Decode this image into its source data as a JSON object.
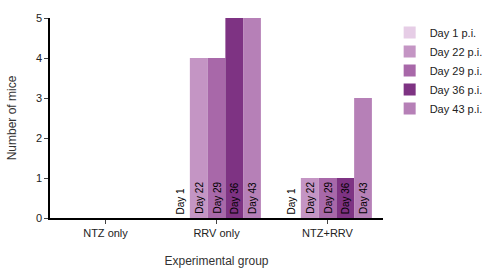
{
  "chart_data": {
    "type": "bar",
    "x_label": "Experimental group",
    "y_label": "Number of mice",
    "categories": [
      "NTZ only",
      "RRV only",
      "NTZ+RRV"
    ],
    "series": [
      {
        "name": "Day 1 p.i.",
        "color": "#e6cde6",
        "values": [
          0,
          0,
          0
        ]
      },
      {
        "name": "Day 22 p.i.",
        "color": "#c495c4",
        "values": [
          0,
          4,
          1
        ]
      },
      {
        "name": "Day 29 p.i.",
        "color": "#a868a9",
        "values": [
          0,
          4,
          1
        ]
      },
      {
        "name": "Day 36 p.i.",
        "color": "#7e3383",
        "values": [
          0,
          5,
          1
        ]
      },
      {
        "name": "Day 43 p.i.",
        "color": "#b680b7",
        "values": [
          0,
          5,
          3
        ]
      }
    ],
    "ylim": [
      0,
      5
    ],
    "yticks": [
      0,
      1,
      2,
      3,
      4,
      5
    ],
    "grid": false,
    "legend": "top right",
    "annotations": [
      {
        "text": "Day 1",
        "category": "RRV only",
        "series": "Day 1 p.i."
      },
      {
        "text": "Day 22",
        "category": "RRV only",
        "series": "Day 22 p.i."
      },
      {
        "text": "Day 29",
        "category": "RRV only",
        "series": "Day 29 p.i."
      },
      {
        "text": "Day 36",
        "category": "RRV only",
        "series": "Day 36 p.i."
      },
      {
        "text": "Day 43",
        "category": "RRV only",
        "series": "Day 43 p.i."
      },
      {
        "text": "Day 1",
        "category": "NTZ+RRV",
        "series": "Day 1 p.i."
      },
      {
        "text": "Day 22",
        "category": "NTZ+RRV",
        "series": "Day 22 p.i."
      },
      {
        "text": "Day 29",
        "category": "NTZ+RRV",
        "series": "Day 29 p.i."
      },
      {
        "text": "Day 36",
        "category": "NTZ+RRV",
        "series": "Day 36 p.i."
      },
      {
        "text": "Day 43",
        "category": "NTZ+RRV",
        "series": "Day 43 p.i."
      }
    ]
  }
}
